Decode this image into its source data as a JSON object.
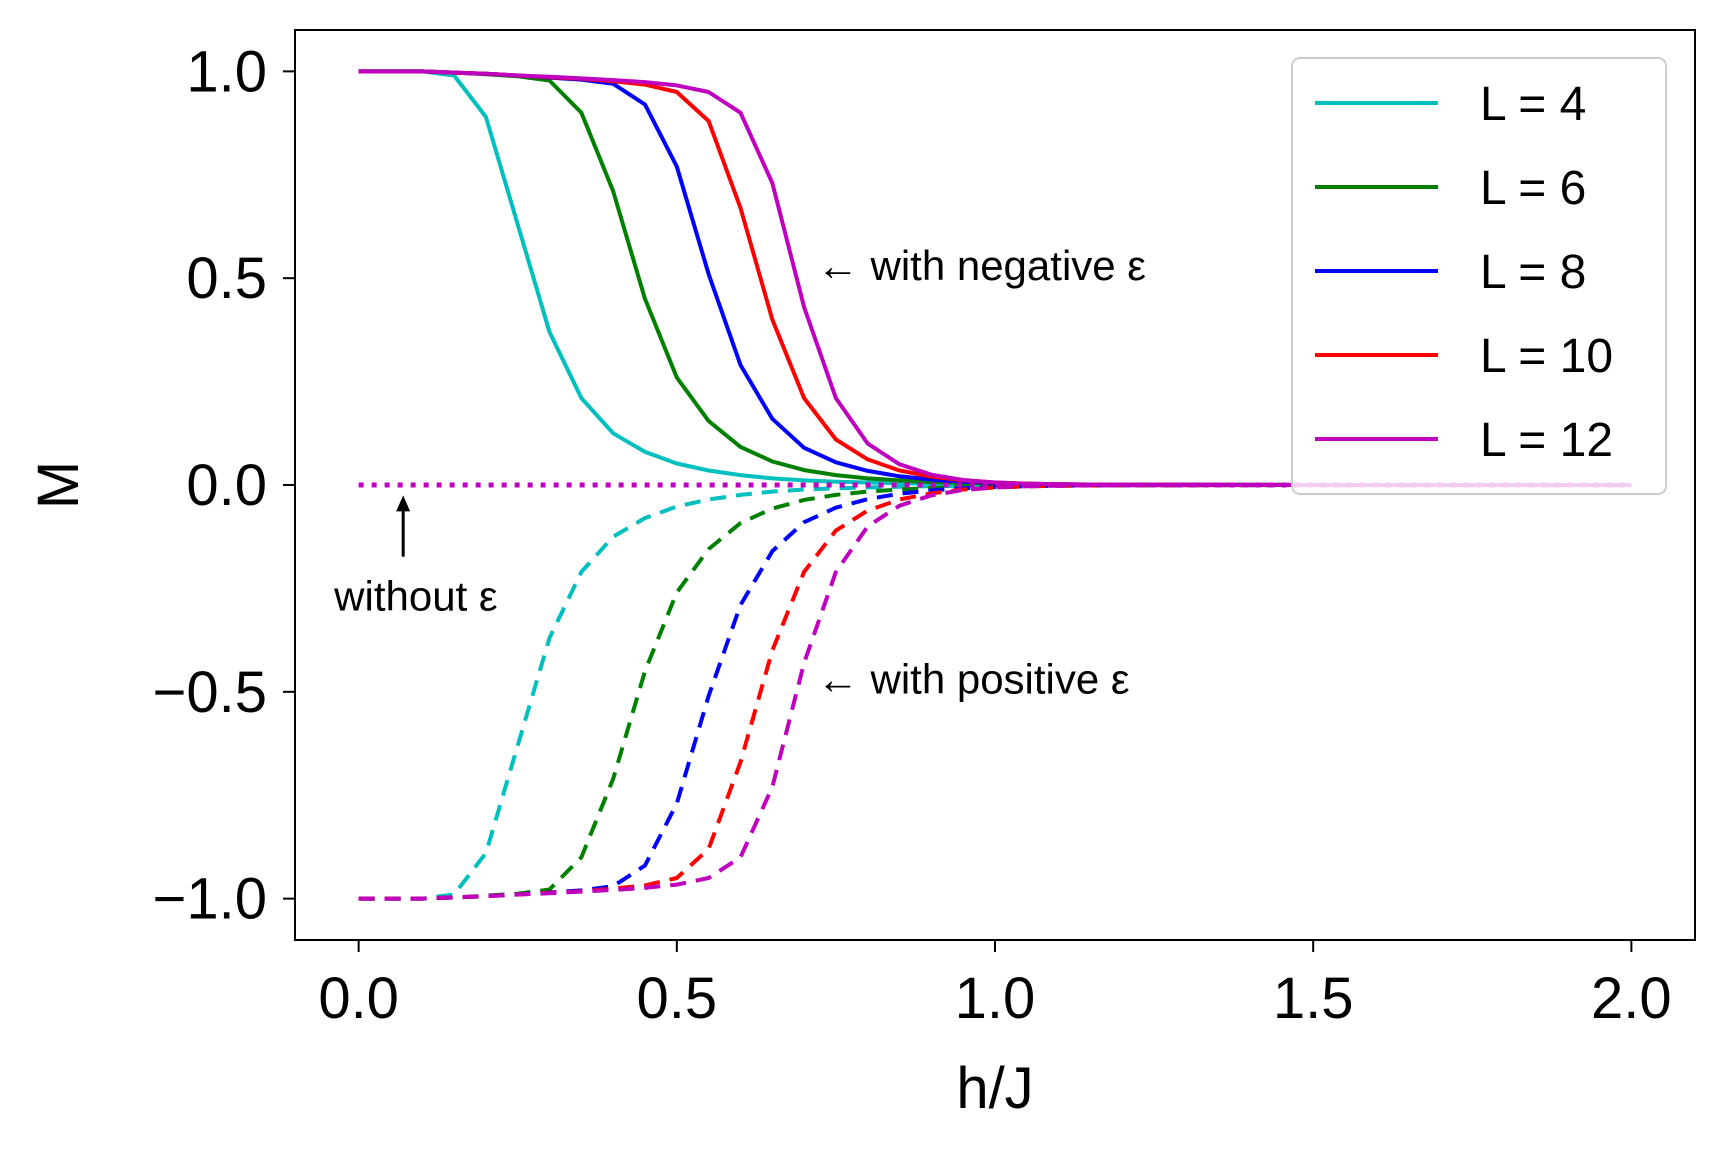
{
  "chart_data": {
    "type": "line",
    "xlabel": "h/J",
    "ylabel": "M",
    "xlim": [
      -0.1,
      2.1
    ],
    "ylim": [
      -1.1,
      1.1
    ],
    "xticks": [
      0.0,
      0.5,
      1.0,
      1.5,
      2.0
    ],
    "xtick_labels": [
      "0.0",
      "0.5",
      "1.0",
      "1.5",
      "2.0"
    ],
    "yticks": [
      1.0,
      0.5,
      0.0,
      -0.5,
      -1.0
    ],
    "ytick_labels": [
      "1.0",
      "0.5",
      "0.0",
      "−0.5",
      "−1.0"
    ],
    "legend_position": "top-right",
    "x": [
      0.0,
      0.05,
      0.1,
      0.15,
      0.2,
      0.25,
      0.3,
      0.35,
      0.4,
      0.45,
      0.5,
      0.55,
      0.6,
      0.65,
      0.7,
      0.75,
      0.8,
      0.85,
      0.9,
      0.95,
      1.0,
      1.05,
      1.1,
      1.15,
      1.2,
      1.3,
      1.4,
      1.5,
      1.6,
      1.7,
      1.8,
      1.9,
      2.0
    ],
    "series": [
      {
        "name": "L = 4",
        "color": "#00bfbf",
        "values": [
          1.0,
          1.0,
          1.0,
          0.99,
          0.89,
          0.63,
          0.37,
          0.21,
          0.125,
          0.08,
          0.052,
          0.035,
          0.024,
          0.016,
          0.011,
          0.008,
          0.006,
          0.004,
          0.003,
          0.002,
          0.0015,
          0.001,
          0.0008,
          0.0006,
          0.0005,
          0.0003,
          0.0002,
          0.0001,
          0.0001,
          0.0,
          0.0,
          0.0,
          0.0
        ]
      },
      {
        "name": "L = 6",
        "color": "#008000",
        "values": [
          1.0,
          1.0,
          1.0,
          0.997,
          0.993,
          0.988,
          0.978,
          0.9,
          0.71,
          0.45,
          0.26,
          0.155,
          0.092,
          0.057,
          0.036,
          0.024,
          0.016,
          0.011,
          0.007,
          0.005,
          0.003,
          0.002,
          0.0015,
          0.001,
          0.0007,
          0.0004,
          0.0002,
          0.0001,
          0.0,
          0.0,
          0.0,
          0.0,
          0.0
        ]
      },
      {
        "name": "L = 8",
        "color": "#0000ff",
        "values": [
          1.0,
          1.0,
          1.0,
          0.997,
          0.994,
          0.99,
          0.985,
          0.98,
          0.97,
          0.92,
          0.77,
          0.51,
          0.29,
          0.16,
          0.09,
          0.055,
          0.034,
          0.021,
          0.013,
          0.008,
          0.005,
          0.003,
          0.002,
          0.0013,
          0.0008,
          0.0004,
          0.0002,
          0.0001,
          0.0,
          0.0,
          0.0,
          0.0,
          0.0
        ]
      },
      {
        "name": "L = 10",
        "color": "#ff0000",
        "values": [
          1.0,
          1.0,
          1.0,
          0.997,
          0.994,
          0.99,
          0.986,
          0.982,
          0.976,
          0.968,
          0.95,
          0.88,
          0.67,
          0.4,
          0.21,
          0.11,
          0.062,
          0.035,
          0.02,
          0.011,
          0.006,
          0.0035,
          0.002,
          0.0012,
          0.0008,
          0.0004,
          0.0002,
          0.0001,
          0.0,
          0.0,
          0.0,
          0.0,
          0.0
        ]
      },
      {
        "name": "L = 12",
        "color": "#bf00bf",
        "values": [
          1.0,
          1.0,
          1.0,
          0.997,
          0.994,
          0.99,
          0.987,
          0.983,
          0.979,
          0.974,
          0.966,
          0.95,
          0.9,
          0.73,
          0.43,
          0.21,
          0.1,
          0.05,
          0.025,
          0.012,
          0.006,
          0.003,
          0.0017,
          0.001,
          0.0006,
          0.0003,
          0.0001,
          0.0,
          0.0,
          0.0,
          0.0,
          0.0,
          0.0
        ]
      }
    ],
    "negated_series_note_style": "dashed",
    "zero_line": {
      "style": "dotted",
      "color": "#bf00bf",
      "value": 0.0
    },
    "annotations": [
      {
        "text": "← with negative ε",
        "x": 0.72,
        "y": 0.53
      },
      {
        "text": "← with positive ε",
        "x": 0.72,
        "y": -0.47
      },
      {
        "text": "without ε",
        "x": 0.09,
        "y": -0.27,
        "arrow_to": [
          0.07,
          -0.03
        ]
      }
    ]
  }
}
